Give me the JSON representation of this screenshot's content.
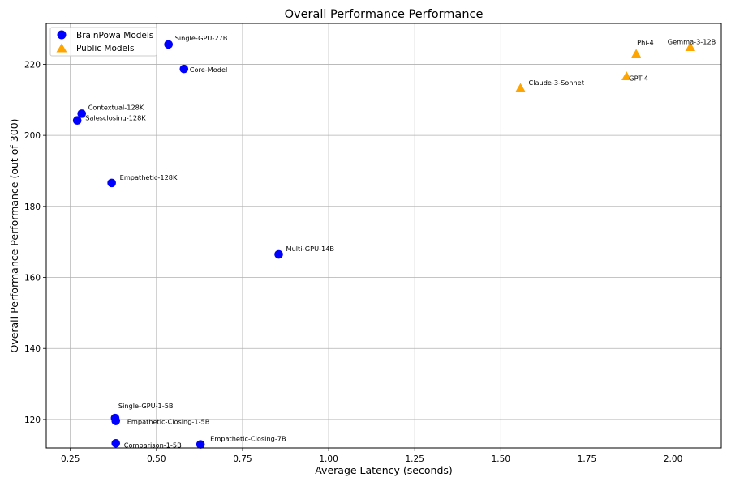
{
  "chart_data": {
    "type": "scatter",
    "title": "Overall Performance Performance",
    "xlabel": "Average Latency (seconds)",
    "ylabel": "Overall Performance Performance (out of 300)",
    "xlim": [
      0.18,
      2.14
    ],
    "ylim": [
      112.0,
      231.5
    ],
    "xticks": [
      0.25,
      0.5,
      0.75,
      1.0,
      1.25,
      1.5,
      1.75,
      2.0
    ],
    "xtick_labels": [
      "0.25",
      "0.50",
      "0.75",
      "1.00",
      "1.25",
      "1.50",
      "1.75",
      "2.00"
    ],
    "yticks": [
      120,
      140,
      160,
      180,
      200,
      220
    ],
    "ytick_labels": [
      "120",
      "140",
      "160",
      "180",
      "200",
      "220"
    ],
    "grid": true,
    "legend_position": "top-left",
    "series": [
      {
        "name": "BrainPowa Models",
        "marker": "circle",
        "color": "#0000ff",
        "points": [
          {
            "label": "Single-GPU-27B",
            "x": 0.535,
            "y": 225.6
          },
          {
            "label": "Core-Model",
            "x": 0.58,
            "y": 218.7
          },
          {
            "label": "Contextual-128K",
            "x": 0.283,
            "y": 206.1
          },
          {
            "label": "Salesclosing-128K",
            "x": 0.27,
            "y": 204.2
          },
          {
            "label": "Empathetic-128K",
            "x": 0.37,
            "y": 186.6
          },
          {
            "label": "Multi-GPU-14B",
            "x": 0.855,
            "y": 166.5
          },
          {
            "label": "Single-GPU-1-5B",
            "x": 0.38,
            "y": 120.4
          },
          {
            "label": "Empathetic-Closing-1-5B",
            "x": 0.382,
            "y": 119.6
          },
          {
            "label": "Comparison-1-5B",
            "x": 0.382,
            "y": 113.3
          },
          {
            "label": "Empathetic-Closing-7B",
            "x": 0.628,
            "y": 113.0
          }
        ]
      },
      {
        "name": "Public Models",
        "marker": "triangle",
        "color": "#ffa500",
        "points": [
          {
            "label": "Claude-3-Sonnet",
            "x": 1.557,
            "y": 213.3
          },
          {
            "label": "Phi-4",
            "x": 1.893,
            "y": 222.9
          },
          {
            "label": "GPT-4",
            "x": 1.865,
            "y": 216.6
          },
          {
            "label": "Gemma-3-12B",
            "x": 2.05,
            "y": 224.8
          }
        ]
      }
    ]
  }
}
